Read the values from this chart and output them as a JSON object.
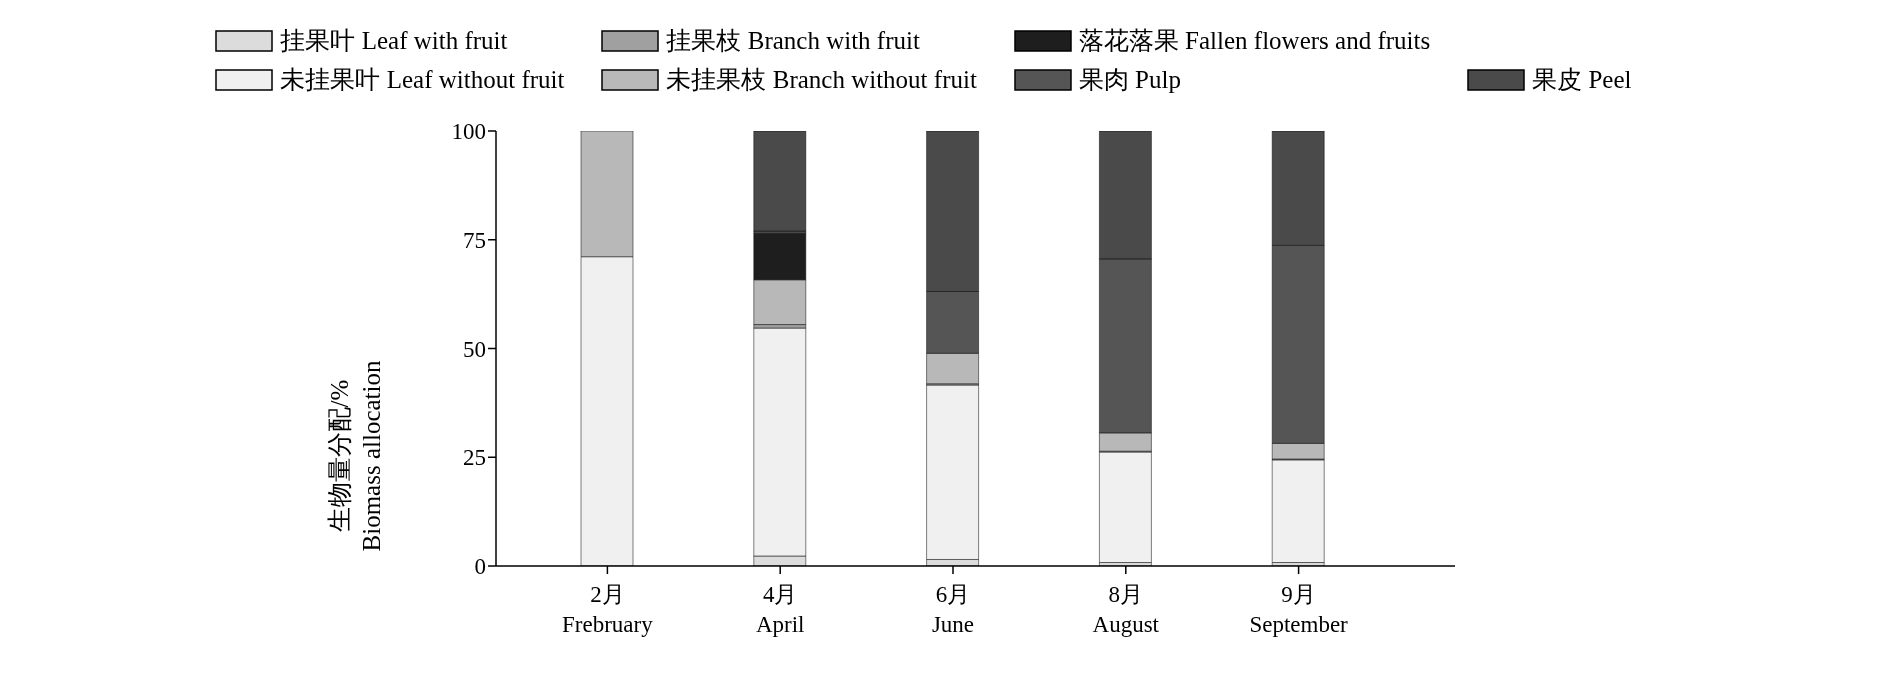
{
  "chart_data": {
    "type": "bar",
    "stacked": true,
    "categories": [
      "2月\nFrebruary",
      "4月\nApril",
      "6月\nJune",
      "8月\nAugust",
      "9月\nSeptember"
    ],
    "ylabel": "生物量分配/%\nBiomass allocation",
    "ylim": [
      0,
      100
    ],
    "yticks": [
      0,
      25,
      50,
      75,
      100
    ],
    "grid": false,
    "legend": "top",
    "series": [
      {
        "name": "挂果叶 Leaf with fruit",
        "color": "#dcdcdc",
        "values": [
          0,
          2.3,
          1.5,
          0.8,
          0.8
        ]
      },
      {
        "name": "未挂果叶 Leaf without fruit",
        "color": "#f0f0f0",
        "values": [
          71.1,
          52.4,
          40.1,
          25.4,
          23.6
        ]
      },
      {
        "name": "挂果枝 Branch with fruit",
        "color": "#a0a0a0",
        "values": [
          0,
          0.8,
          0.3,
          0.2,
          0.2
        ]
      },
      {
        "name": "未挂果枝 Branch without fruit",
        "color": "#b8b8b8",
        "values": [
          28.9,
          10.3,
          7.0,
          4.2,
          3.6
        ]
      },
      {
        "name": "落花落果 Fallen flowers and fruits",
        "color": "#1e1e1e",
        "values": [
          0,
          10.7,
          0,
          0,
          0
        ]
      },
      {
        "name": "果肉 Pulp",
        "color": "#555555",
        "values": [
          0,
          0.5,
          14.2,
          40.0,
          45.5
        ]
      },
      {
        "name": "果皮 Peel",
        "color": "#4a4a4a",
        "values": [
          0,
          23.0,
          36.9,
          29.4,
          26.3
        ]
      }
    ]
  }
}
